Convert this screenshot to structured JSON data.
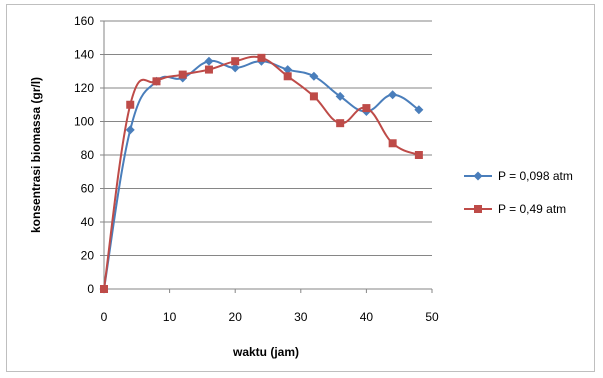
{
  "chart_data": {
    "type": "line",
    "xlabel": "waktu (jam)",
    "ylabel": "konsentrasi biomassa  (gr/l)",
    "xlim": [
      0,
      50
    ],
    "ylim": [
      0,
      160
    ],
    "x_ticks": [
      0,
      10,
      20,
      30,
      40,
      50
    ],
    "y_ticks": [
      0,
      20,
      40,
      60,
      80,
      100,
      120,
      140,
      160
    ],
    "grid": "horizontal",
    "legend_position": "right",
    "series": [
      {
        "name": "P = 0,098 atm",
        "color": "#4a7ebb",
        "marker": "diamond",
        "x": [
          0,
          4,
          8,
          12,
          16,
          20,
          24,
          28,
          32,
          36,
          40,
          44,
          48
        ],
        "y": [
          0,
          95,
          124,
          126,
          136,
          132,
          136,
          131,
          127,
          115,
          106,
          116,
          107
        ]
      },
      {
        "name": "P = 0,49 atm",
        "color": "#be4b48",
        "marker": "square",
        "x": [
          0,
          4,
          8,
          12,
          16,
          20,
          24,
          28,
          32,
          36,
          40,
          44,
          48
        ],
        "y": [
          0,
          110,
          124,
          128,
          131,
          136,
          138,
          127,
          115,
          99,
          108,
          87,
          80
        ]
      }
    ]
  }
}
